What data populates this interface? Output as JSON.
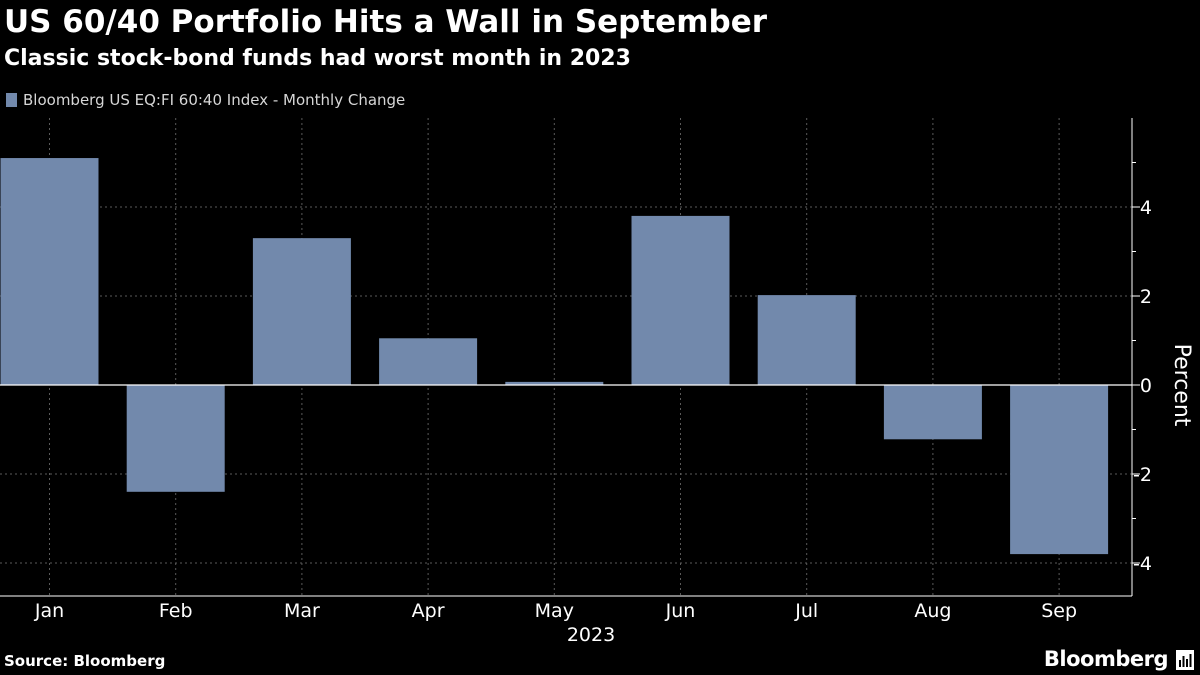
{
  "header": {
    "title": "US 60/40 Portfolio Hits a Wall in September",
    "subtitle": "Classic stock-bond funds had worst month in 2023"
  },
  "legend": {
    "label": "Bloomberg US EQ:FI 60:40 Index - Monthly Change"
  },
  "footer": {
    "source": "Source: Bloomberg",
    "brand": "Bloomberg"
  },
  "colors": {
    "bar": "#7289ac",
    "background": "#000000",
    "grid": "#5a5a5a",
    "text": "#ffffff"
  },
  "icons": {
    "brand_icon": "bloomberg-chart-icon"
  },
  "chart_data": {
    "type": "bar",
    "title": "US 60/40 Portfolio Hits a Wall in September",
    "subtitle": "Classic stock-bond funds had worst month in 2023",
    "categories": [
      "Jan",
      "Feb",
      "Mar",
      "Apr",
      "May",
      "Jun",
      "Jul",
      "Aug",
      "Sep"
    ],
    "xlabel": "2023",
    "ylabel": "Percent",
    "ylim": [
      -4.7,
      6
    ],
    "yticks": [
      4,
      2,
      0,
      -2,
      -4
    ],
    "ytick_labels": [
      "4",
      "2",
      "0",
      "-2",
      "-4"
    ],
    "series": [
      {
        "name": "Bloomberg US EQ:FI 60:40 Index - Monthly Change",
        "values": [
          5.1,
          -2.4,
          3.3,
          1.05,
          0.07,
          3.8,
          2.02,
          -1.22,
          -3.8
        ]
      }
    ],
    "grid": true,
    "legend_position": "top-left",
    "y_axis_side": "right"
  }
}
